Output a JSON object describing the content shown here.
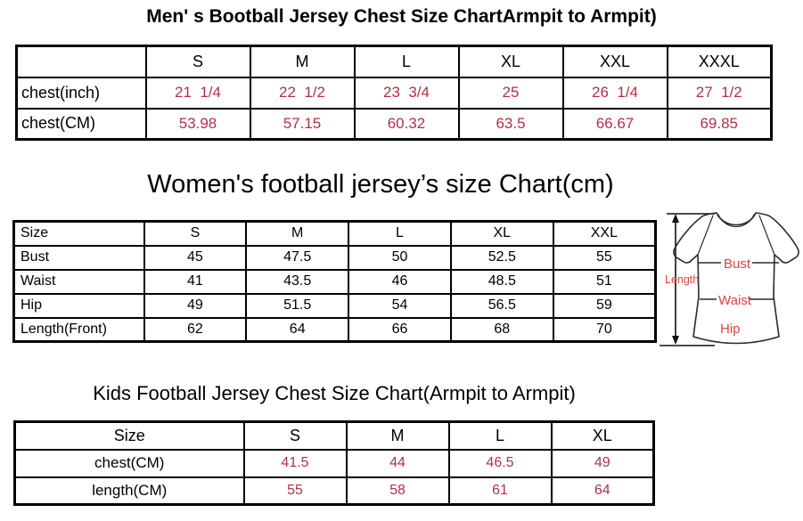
{
  "colors": {
    "table_value_red": "#b03144",
    "diagram_label_red": "#e43f3f",
    "line_black": "#2a2a2a"
  },
  "mens_chart": {
    "title": "Men' s Bootball Jersey Chest Size ChartArmpit to Armpit)",
    "columns": [
      "",
      "S",
      "M",
      "L",
      "XL",
      "XXL",
      "XXXL"
    ],
    "rows": [
      {
        "label": "chest(inch)",
        "values": [
          "21  1/4",
          "22  1/2",
          "23  3/4",
          "25",
          "26  1/4",
          "27  1/2"
        ]
      },
      {
        "label": "chest(CM)",
        "values": [
          "53.98",
          "57.15",
          "60.32",
          "63.5",
          "66.67",
          "69.85"
        ]
      }
    ]
  },
  "womens_chart": {
    "title": "Women's football jersey’s size Chart(cm)",
    "columns": [
      "Size",
      "S",
      "M",
      "L",
      "XL",
      "XXL"
    ],
    "rows": [
      {
        "label": "Bust",
        "values": [
          "45",
          "47.5",
          "50",
          "52.5",
          "55"
        ]
      },
      {
        "label": "Waist",
        "values": [
          "41",
          "43.5",
          "46",
          "48.5",
          "51"
        ]
      },
      {
        "label": "Hip",
        "values": [
          "49",
          "51.5",
          "54",
          "56.5",
          "59"
        ]
      },
      {
        "label": "Length(Front)",
        "values": [
          "62",
          "64",
          "66",
          "68",
          "70"
        ]
      }
    ],
    "diagram": {
      "length_label": "Length",
      "bust_label": "Bust",
      "waist_label": "Waist",
      "hip_label": "Hip"
    }
  },
  "kids_chart": {
    "title": "Kids Football Jersey Chest Size Chart(Armpit to Armpit)",
    "columns": [
      "Size",
      "S",
      "M",
      "L",
      "XL"
    ],
    "rows": [
      {
        "label": "chest(CM)",
        "values": [
          "41.5",
          "44",
          "46.5",
          "49"
        ]
      },
      {
        "label": "length(CM)",
        "values": [
          "55",
          "58",
          "61",
          "64"
        ]
      }
    ]
  }
}
